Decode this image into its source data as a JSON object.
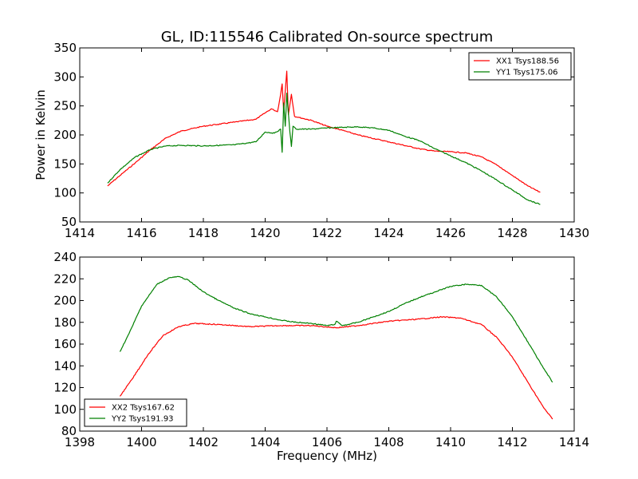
{
  "title": "GL, ID:115546 Calibrated On-source spectrum",
  "chart_data": [
    {
      "type": "line",
      "title": "GL, ID:115546 Calibrated On-source spectrum",
      "xlabel": "",
      "ylabel": "Power in Kelvin",
      "xlim": [
        1414,
        1430
      ],
      "ylim": [
        50,
        350
      ],
      "xticks": [
        "1414",
        "1416",
        "1418",
        "1420",
        "1422",
        "1424",
        "1426",
        "1428",
        "1430"
      ],
      "yticks": [
        "50",
        "100",
        "150",
        "200",
        "250",
        "300",
        "350"
      ],
      "grid": false,
      "legend_position": "top-right",
      "series": [
        {
          "name": "XX1 Tsys188.56",
          "color": "#ff0000",
          "x": [
            1414.9,
            1415.3,
            1415.8,
            1416.3,
            1416.8,
            1417.3,
            1418.0,
            1419.0,
            1419.7,
            1420.0,
            1420.2,
            1420.4,
            1420.5,
            1420.55,
            1420.6,
            1420.7,
            1420.75,
            1420.85,
            1420.95,
            1421.1,
            1421.5,
            1422.0,
            1422.5,
            1423.0,
            1424.0,
            1425.0,
            1425.5,
            1426.0,
            1426.5,
            1427.0,
            1427.5,
            1428.0,
            1428.5,
            1428.9
          ],
          "y": [
            112,
            130,
            152,
            175,
            195,
            207,
            215,
            222,
            227,
            238,
            245,
            240,
            270,
            288,
            240,
            310,
            235,
            270,
            232,
            230,
            225,
            215,
            208,
            200,
            188,
            176,
            172,
            171,
            169,
            162,
            148,
            130,
            112,
            101
          ]
        },
        {
          "name": "YY1 Tsys175.06",
          "color": "#008000",
          "x": [
            1414.9,
            1415.3,
            1415.8,
            1416.3,
            1416.8,
            1417.3,
            1418.0,
            1419.0,
            1419.7,
            1420.0,
            1420.3,
            1420.5,
            1420.55,
            1420.6,
            1420.65,
            1420.7,
            1420.8,
            1420.85,
            1420.9,
            1421.0,
            1421.5,
            1422.0,
            1422.5,
            1423.0,
            1423.5,
            1424.0,
            1424.5,
            1425.0,
            1425.5,
            1426.0,
            1426.5,
            1427.0,
            1427.5,
            1428.0,
            1428.5,
            1428.9
          ],
          "y": [
            117,
            140,
            162,
            175,
            181,
            182,
            181,
            183,
            188,
            205,
            203,
            210,
            170,
            255,
            215,
            272,
            205,
            180,
            215,
            210,
            210,
            212,
            213,
            214,
            212,
            208,
            198,
            190,
            176,
            164,
            152,
            138,
            122,
            105,
            88,
            80
          ]
        }
      ]
    },
    {
      "type": "line",
      "title": "",
      "xlabel": "Frequency (MHz)",
      "ylabel": "",
      "xlim": [
        1398,
        1414
      ],
      "ylim": [
        80,
        240
      ],
      "xticks": [
        "1398",
        "1400",
        "1402",
        "1404",
        "1406",
        "1408",
        "1410",
        "1412",
        "1414"
      ],
      "yticks": [
        "80",
        "100",
        "120",
        "140",
        "160",
        "180",
        "200",
        "220",
        "240"
      ],
      "grid": false,
      "legend_position": "bottom-left",
      "series": [
        {
          "name": "XX2 Tsys167.62",
          "color": "#ff0000",
          "x": [
            1399.3,
            1399.7,
            1400.2,
            1400.7,
            1401.2,
            1401.7,
            1402.5,
            1403.5,
            1404.5,
            1405.5,
            1406.3,
            1407.0,
            1408.0,
            1409.0,
            1409.7,
            1410.3,
            1411.0,
            1411.5,
            1412.0,
            1412.5,
            1413.0,
            1413.3
          ],
          "y": [
            112,
            128,
            150,
            168,
            176,
            179,
            178,
            176,
            177,
            177,
            175,
            177,
            181,
            183,
            185,
            184,
            178,
            166,
            148,
            125,
            102,
            91
          ]
        },
        {
          "name": "YY2 Tsys191.93",
          "color": "#008000",
          "x": [
            1399.3,
            1399.6,
            1400.0,
            1400.5,
            1400.9,
            1401.2,
            1401.5,
            1402.0,
            1402.5,
            1403.0,
            1403.5,
            1404.0,
            1404.5,
            1405.0,
            1405.5,
            1406.0,
            1406.25,
            1406.3,
            1406.5,
            1407.0,
            1407.5,
            1408.0,
            1408.5,
            1409.0,
            1409.5,
            1410.0,
            1410.5,
            1411.0,
            1411.5,
            1412.0,
            1412.5,
            1413.0,
            1413.3
          ],
          "y": [
            153,
            170,
            195,
            215,
            221,
            222,
            219,
            208,
            200,
            193,
            188,
            185,
            182,
            180,
            179,
            177,
            178,
            181,
            177,
            180,
            185,
            190,
            197,
            203,
            208,
            213,
            215,
            214,
            203,
            185,
            162,
            138,
            125
          ]
        }
      ]
    }
  ]
}
